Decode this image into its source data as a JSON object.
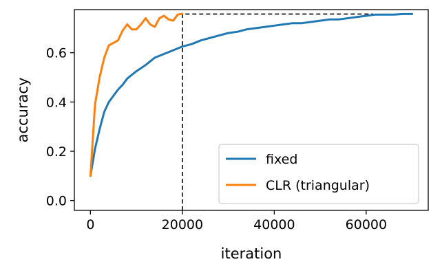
{
  "chart_data": {
    "type": "line",
    "xlabel": "iteration",
    "ylabel": "accuracy",
    "xlim": [
      -3500,
      73500
    ],
    "ylim": [
      -0.04,
      0.775
    ],
    "xticks": [
      0,
      20000,
      40000,
      60000
    ],
    "xtick_labels": [
      "0",
      "20000",
      "40000",
      "60000"
    ],
    "yticks": [
      0.0,
      0.2,
      0.4,
      0.6
    ],
    "ytick_labels": [
      "0.0",
      "0.2",
      "0.4",
      "0.6"
    ],
    "grid": false,
    "legend_position": "bottom-right",
    "series": [
      {
        "name": "fixed",
        "color": "#1f77b4",
        "x": [
          0,
          1000,
          2000,
          3000,
          4000,
          5000,
          6000,
          7000,
          8000,
          9000,
          10000,
          12000,
          14000,
          16000,
          18000,
          20000,
          22000,
          24000,
          26000,
          28000,
          30000,
          32000,
          34000,
          36000,
          38000,
          40000,
          42000,
          44000,
          46000,
          48000,
          50000,
          52000,
          54000,
          56000,
          58000,
          60000,
          62000,
          64000,
          66000,
          68000,
          70000
        ],
        "y": [
          0.1,
          0.21,
          0.29,
          0.36,
          0.4,
          0.425,
          0.45,
          0.47,
          0.495,
          0.51,
          0.525,
          0.55,
          0.58,
          0.595,
          0.61,
          0.625,
          0.635,
          0.65,
          0.66,
          0.67,
          0.68,
          0.685,
          0.695,
          0.7,
          0.705,
          0.71,
          0.715,
          0.72,
          0.72,
          0.725,
          0.73,
          0.735,
          0.735,
          0.74,
          0.745,
          0.75,
          0.755,
          0.755,
          0.755,
          0.757,
          0.757
        ]
      },
      {
        "name": "CLR (triangular)",
        "color": "#ff7f0e",
        "x": [
          0,
          1000,
          2000,
          3000,
          4000,
          5000,
          6000,
          7000,
          8000,
          9000,
          10000,
          11000,
          12000,
          13000,
          14000,
          15000,
          16000,
          17000,
          18000,
          19000,
          20000
        ],
        "y": [
          0.1,
          0.39,
          0.5,
          0.58,
          0.63,
          0.64,
          0.65,
          0.69,
          0.715,
          0.695,
          0.695,
          0.715,
          0.74,
          0.715,
          0.705,
          0.74,
          0.75,
          0.735,
          0.73,
          0.755,
          0.758
        ]
      }
    ],
    "reference_lines": [
      {
        "style": "dashed",
        "color": "#000000",
        "points": [
          [
            20000,
            -0.04
          ],
          [
            20000,
            0.757
          ],
          [
            61500,
            0.757
          ]
        ]
      }
    ]
  }
}
